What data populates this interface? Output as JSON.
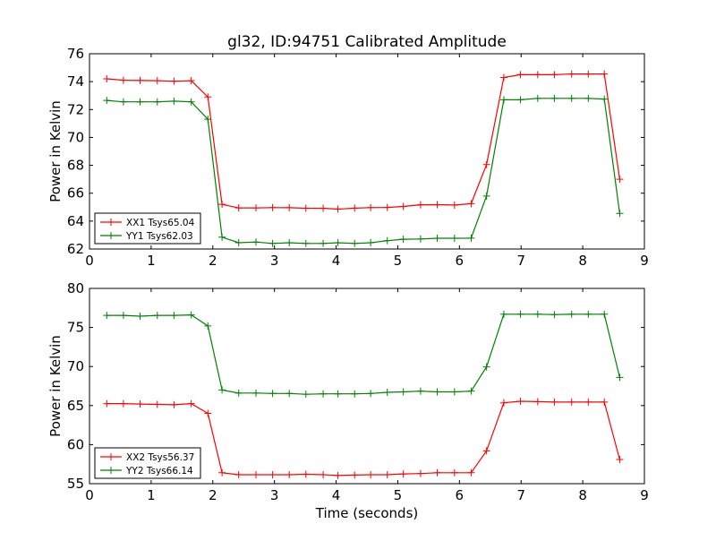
{
  "chart_data": [
    {
      "type": "line",
      "title": "gl32, ID:94751 Calibrated Amplitude",
      "xlabel": "",
      "ylabel": "Power in Kelvin",
      "xlim": [
        0,
        9
      ],
      "ylim": [
        62,
        76
      ],
      "xticks": [
        "0",
        "1",
        "2",
        "3",
        "4",
        "5",
        "6",
        "7",
        "8",
        "9"
      ],
      "yticks": [
        "62",
        "64",
        "66",
        "68",
        "70",
        "72",
        "74",
        "76"
      ],
      "legend": "lower-left",
      "x": [
        0.28,
        0.55,
        0.82,
        1.1,
        1.37,
        1.65,
        1.92,
        2.15,
        2.42,
        2.7,
        2.97,
        3.24,
        3.51,
        3.79,
        4.03,
        4.3,
        4.56,
        4.83,
        5.09,
        5.37,
        5.64,
        5.92,
        6.19,
        6.44,
        6.72,
        6.99,
        7.27,
        7.54,
        7.82,
        8.09,
        8.35,
        8.6
      ],
      "series": [
        {
          "name": "XX1 Tsys65.04",
          "color": "#ff0000",
          "values": [
            74.2,
            74.1,
            74.08,
            74.07,
            74.03,
            74.07,
            72.9,
            65.2,
            64.95,
            64.95,
            64.97,
            64.96,
            64.92,
            64.92,
            64.86,
            64.93,
            64.97,
            64.98,
            65.05,
            65.17,
            65.18,
            65.15,
            65.25,
            68.05,
            74.3,
            74.5,
            74.5,
            74.5,
            74.55,
            74.55,
            74.55,
            67.0
          ]
        },
        {
          "name": "YY1 Tsys62.03",
          "color": "#008000",
          "values": [
            72.65,
            72.55,
            72.55,
            72.55,
            72.6,
            72.55,
            71.3,
            62.85,
            62.45,
            62.5,
            62.4,
            62.45,
            62.4,
            62.4,
            62.45,
            62.4,
            62.45,
            62.6,
            62.7,
            62.72,
            62.77,
            62.77,
            62.78,
            65.8,
            72.7,
            72.7,
            72.8,
            72.8,
            72.8,
            72.8,
            72.75,
            64.55
          ]
        }
      ]
    },
    {
      "type": "line",
      "title": "",
      "xlabel": "Time (seconds)",
      "ylabel": "Power in Kelvin",
      "xlim": [
        0,
        9
      ],
      "ylim": [
        55,
        80
      ],
      "xticks": [
        "0",
        "1",
        "2",
        "3",
        "4",
        "5",
        "6",
        "7",
        "8",
        "9"
      ],
      "yticks": [
        "55",
        "60",
        "65",
        "70",
        "75",
        "80"
      ],
      "legend": "lower-left",
      "x": [
        0.28,
        0.55,
        0.82,
        1.1,
        1.37,
        1.65,
        1.92,
        2.15,
        2.42,
        2.7,
        2.97,
        3.24,
        3.51,
        3.79,
        4.03,
        4.3,
        4.56,
        4.83,
        5.09,
        5.37,
        5.64,
        5.92,
        6.19,
        6.44,
        6.72,
        6.99,
        7.27,
        7.54,
        7.82,
        8.09,
        8.35,
        8.6
      ],
      "series": [
        {
          "name": "XX2 Tsys56.37",
          "color": "#ff0000",
          "values": [
            65.25,
            65.25,
            65.2,
            65.15,
            65.1,
            65.25,
            64.0,
            56.4,
            56.15,
            56.15,
            56.15,
            56.15,
            56.2,
            56.15,
            56.05,
            56.1,
            56.15,
            56.15,
            56.25,
            56.3,
            56.4,
            56.4,
            56.4,
            59.2,
            65.35,
            65.55,
            65.5,
            65.45,
            65.45,
            65.45,
            65.45,
            58.1
          ]
        },
        {
          "name": "YY2 Tsys66.14",
          "color": "#008000",
          "values": [
            76.55,
            76.55,
            76.45,
            76.55,
            76.55,
            76.6,
            75.2,
            67.0,
            66.6,
            66.6,
            66.55,
            66.55,
            66.45,
            66.5,
            66.5,
            66.5,
            66.55,
            66.7,
            66.75,
            66.85,
            66.75,
            66.75,
            66.85,
            69.95,
            76.7,
            76.7,
            76.7,
            76.65,
            76.7,
            76.7,
            76.7,
            68.6
          ]
        }
      ]
    }
  ]
}
